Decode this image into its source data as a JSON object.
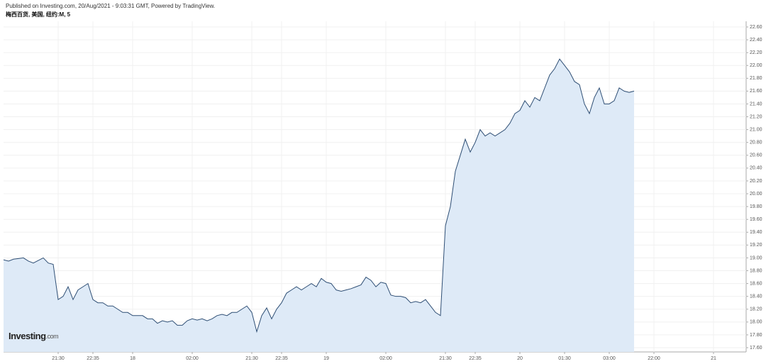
{
  "header": {
    "published": "Published on Investing.com, 20/Aug/2021 - 9:03:31 GMT, Powered by TradingView.",
    "symbol": "梅西百货, 美国, 纽约:M, 5"
  },
  "watermark": {
    "brand": "Investing",
    "suffix": ".com"
  },
  "chart_data": {
    "type": "area",
    "categories": [
      null,
      null,
      null,
      null,
      null,
      null,
      null,
      null,
      null,
      null,
      null,
      "21:30",
      null,
      null,
      null,
      null,
      null,
      null,
      "22:35",
      null,
      null,
      null,
      null,
      null,
      null,
      null,
      "18",
      null,
      null,
      null,
      null,
      null,
      null,
      null,
      null,
      null,
      null,
      null,
      "02:00",
      null,
      null,
      null,
      null,
      null,
      null,
      null,
      null,
      null,
      null,
      null,
      "21:30",
      null,
      null,
      null,
      null,
      null,
      "22:35",
      null,
      null,
      null,
      null,
      null,
      null,
      null,
      null,
      "19",
      null,
      null,
      null,
      null,
      null,
      null,
      null,
      null,
      null,
      null,
      null,
      "02:00",
      null,
      null,
      null,
      null,
      null,
      null,
      null,
      null,
      null,
      null,
      null,
      "21:30",
      null,
      null,
      null,
      null,
      null,
      "22:35",
      null,
      null,
      null,
      null,
      null,
      null,
      null,
      null,
      "20",
      null,
      null,
      null,
      null,
      null,
      null,
      null,
      null,
      "01:30",
      null,
      null,
      null,
      null,
      null,
      null,
      null,
      null,
      "03:00",
      null,
      null,
      null,
      null,
      null,
      null,
      null,
      null,
      "22:00",
      null,
      null,
      null,
      null,
      null,
      null,
      null,
      null,
      null,
      null,
      null,
      "21",
      null,
      null,
      null,
      null,
      null,
      null
    ],
    "values": [
      18.97,
      18.95,
      18.98,
      18.99,
      19.0,
      18.95,
      18.92,
      18.96,
      19.0,
      18.92,
      18.9,
      18.35,
      18.4,
      18.55,
      18.35,
      18.5,
      18.55,
      18.6,
      18.35,
      18.3,
      18.3,
      18.25,
      18.25,
      18.2,
      18.15,
      18.15,
      18.1,
      18.1,
      18.1,
      18.05,
      18.05,
      17.98,
      18.02,
      18.0,
      18.02,
      17.95,
      17.95,
      18.02,
      18.05,
      18.03,
      18.05,
      18.02,
      18.05,
      18.1,
      18.12,
      18.1,
      18.15,
      18.15,
      18.2,
      18.25,
      18.15,
      17.85,
      18.1,
      18.22,
      18.05,
      18.2,
      18.3,
      18.45,
      18.5,
      18.55,
      18.5,
      18.55,
      18.6,
      18.55,
      18.68,
      18.62,
      18.6,
      18.5,
      18.48,
      18.5,
      18.52,
      18.55,
      18.58,
      18.7,
      18.65,
      18.55,
      18.62,
      18.6,
      18.42,
      18.4,
      18.4,
      18.38,
      18.3,
      18.32,
      18.3,
      18.35,
      18.25,
      18.15,
      18.1,
      19.5,
      19.8,
      20.35,
      20.6,
      20.85,
      20.65,
      20.8,
      21.0,
      20.9,
      20.95,
      20.9,
      20.95,
      21.0,
      21.1,
      21.25,
      21.3,
      21.45,
      21.35,
      21.5,
      21.45,
      21.65,
      21.85,
      21.95,
      22.1,
      22.0,
      21.9,
      21.75,
      21.7,
      21.4,
      21.25,
      21.5,
      21.65,
      21.4,
      21.4,
      21.45,
      21.65,
      21.6,
      21.58,
      21.6,
      null,
      null,
      null,
      null,
      null,
      null,
      null,
      null,
      null,
      null,
      null,
      null,
      null,
      null,
      null,
      null,
      null,
      null,
      null,
      null,
      null,
      null
    ],
    "color": "#2f4f75",
    "fill": "#deeaf7",
    "ylim": [
      17.6,
      22.6
    ],
    "yticks": [
      {
        "value": 17.6,
        "label": "17.60"
      },
      {
        "value": 17.8,
        "label": "17.80"
      },
      {
        "value": 18.0,
        "label": "18.00"
      },
      {
        "value": 18.2,
        "label": "18.20"
      },
      {
        "value": 18.4,
        "label": "18.40"
      },
      {
        "value": 18.6,
        "label": "18.60"
      },
      {
        "value": 18.8,
        "label": "18.80"
      },
      {
        "value": 19.0,
        "label": "19.00"
      },
      {
        "value": 19.2,
        "label": "19.20"
      },
      {
        "value": 19.4,
        "label": "19.40"
      },
      {
        "value": 19.6,
        "label": "19.60"
      },
      {
        "value": 19.8,
        "label": "19.80"
      },
      {
        "value": 20.0,
        "label": "20.00"
      },
      {
        "value": 20.2,
        "label": "20.20"
      },
      {
        "value": 20.4,
        "label": "20.40"
      },
      {
        "value": 20.6,
        "label": "20.60"
      },
      {
        "value": 20.8,
        "label": "20.80"
      },
      {
        "value": 21.0,
        "label": "21.00"
      },
      {
        "value": 21.2,
        "label": "21.20"
      },
      {
        "value": 21.4,
        "label": "21.40"
      },
      {
        "value": 21.6,
        "label": "21.60"
      },
      {
        "value": 21.8,
        "label": "21.80"
      },
      {
        "value": 22.0,
        "label": "22.00"
      },
      {
        "value": 22.2,
        "label": "22.20"
      },
      {
        "value": 22.4,
        "label": "22.40"
      },
      {
        "value": 22.6,
        "label": "22.60"
      }
    ],
    "grid": true
  }
}
